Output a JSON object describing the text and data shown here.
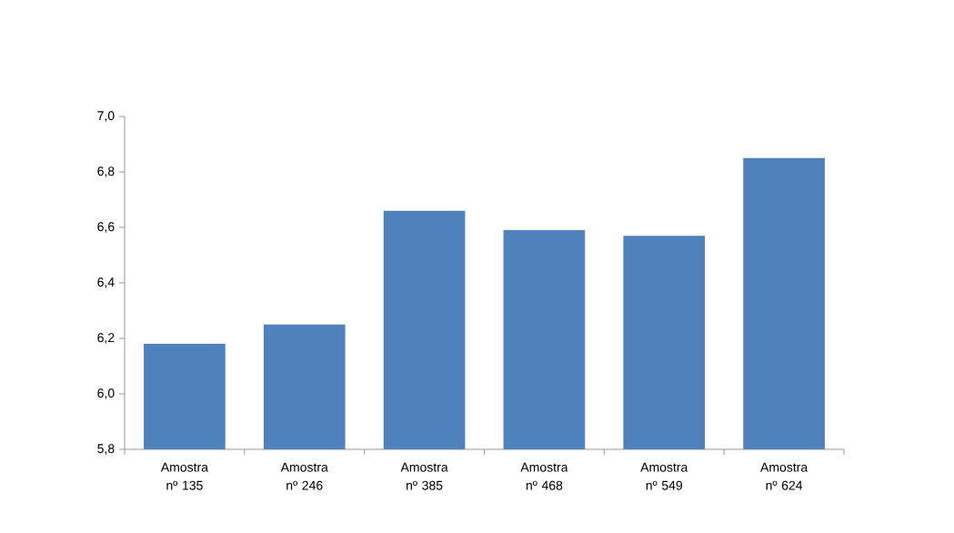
{
  "chart_data": {
    "type": "bar",
    "categories": [
      "Amostra nº 135",
      "Amostra nº 246",
      "Amostra nº 385",
      "Amostra nº 468",
      "Amostra nº 549",
      "Amostra nº 624"
    ],
    "values": [
      6.18,
      6.25,
      6.66,
      6.59,
      6.57,
      6.85
    ],
    "color": "#4f81bd",
    "ylim": [
      5.8,
      7.0
    ],
    "yticks": [
      {
        "value": 5.8,
        "label": "5,8"
      },
      {
        "value": 6.0,
        "label": "6,0"
      },
      {
        "value": 6.2,
        "label": "6,2"
      },
      {
        "value": 6.4,
        "label": "6,4"
      },
      {
        "value": 6.6,
        "label": "6,6"
      },
      {
        "value": 6.8,
        "label": "6,8"
      },
      {
        "value": 7.0,
        "label": "7,0"
      }
    ],
    "grid": false
  }
}
